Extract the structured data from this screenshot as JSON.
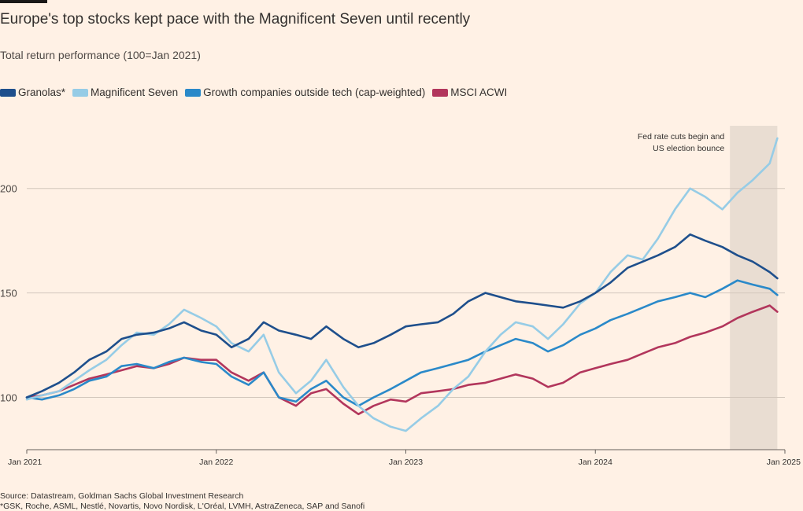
{
  "title": "Europe's top stocks kept pace with the Magnificent Seven until recently",
  "subtitle": "Total return performance (100=Jan 2021)",
  "source": "Source: Datastream, Goldman Sachs Global Investment Research",
  "footnote": "*GSK, Roche, ASML, Nestlé, Novartis, Novo Nordisk, L'Oréal, LVMH, AstraZeneca, SAP and Sanofi",
  "chart_data": {
    "type": "line",
    "xlim": [
      2021.0,
      2025.0
    ],
    "ylim": [
      75,
      230
    ],
    "yticks": [
      100,
      150,
      200
    ],
    "ytick_labels": [
      "100",
      "150",
      "200"
    ],
    "xticks": [
      2021,
      2022,
      2023,
      2024,
      2025
    ],
    "xtick_labels": [
      "Jan 2021",
      "Jan 2022",
      "Jan 2023",
      "Jan 2024",
      "Jan 2025"
    ],
    "grid": true,
    "legend_position": "top-left",
    "shaded_region": {
      "x": [
        2024.71,
        2024.96
      ],
      "label_lines": [
        "Fed rate cuts begin and",
        "US election bounce"
      ]
    },
    "series": [
      {
        "name": "Granolas*",
        "color": "#1E4F8C",
        "x": [
          2021.0,
          2021.08,
          2021.17,
          2021.25,
          2021.33,
          2021.42,
          2021.5,
          2021.58,
          2021.67,
          2021.75,
          2021.83,
          2021.92,
          2022.0,
          2022.08,
          2022.17,
          2022.25,
          2022.33,
          2022.42,
          2022.5,
          2022.58,
          2022.67,
          2022.75,
          2022.83,
          2022.92,
          2023.0,
          2023.08,
          2023.17,
          2023.25,
          2023.33,
          2023.42,
          2023.5,
          2023.58,
          2023.67,
          2023.75,
          2023.83,
          2023.92,
          2024.0,
          2024.08,
          2024.17,
          2024.25,
          2024.33,
          2024.42,
          2024.5,
          2024.58,
          2024.67,
          2024.75,
          2024.83,
          2024.92,
          2024.96
        ],
        "values": [
          100,
          103,
          107,
          112,
          118,
          122,
          128,
          130,
          131,
          133,
          136,
          132,
          130,
          124,
          128,
          136,
          132,
          130,
          128,
          134,
          128,
          124,
          126,
          130,
          134,
          135,
          136,
          140,
          146,
          150,
          148,
          146,
          145,
          144,
          143,
          146,
          150,
          155,
          162,
          165,
          168,
          172,
          178,
          175,
          172,
          168,
          165,
          160,
          157
        ]
      },
      {
        "name": "Magnificent Seven",
        "color": "#96CCE6",
        "x": [
          2021.0,
          2021.08,
          2021.17,
          2021.25,
          2021.33,
          2021.42,
          2021.5,
          2021.58,
          2021.67,
          2021.75,
          2021.83,
          2021.92,
          2022.0,
          2022.08,
          2022.17,
          2022.25,
          2022.33,
          2022.42,
          2022.5,
          2022.58,
          2022.67,
          2022.75,
          2022.83,
          2022.92,
          2023.0,
          2023.08,
          2023.17,
          2023.25,
          2023.33,
          2023.42,
          2023.5,
          2023.58,
          2023.67,
          2023.75,
          2023.83,
          2023.92,
          2024.0,
          2024.08,
          2024.17,
          2024.25,
          2024.33,
          2024.42,
          2024.5,
          2024.58,
          2024.67,
          2024.75,
          2024.83,
          2024.92,
          2024.96
        ],
        "values": [
          99,
          101,
          103,
          108,
          113,
          118,
          125,
          131,
          130,
          135,
          142,
          138,
          134,
          126,
          122,
          130,
          112,
          102,
          108,
          118,
          105,
          96,
          90,
          86,
          84,
          90,
          96,
          104,
          110,
          122,
          130,
          136,
          134,
          128,
          135,
          145,
          150,
          160,
          168,
          166,
          176,
          190,
          200,
          196,
          190,
          198,
          204,
          212,
          224
        ]
      },
      {
        "name": "Growth companies outside tech (cap-weighted)",
        "color": "#2A89C9",
        "x": [
          2021.0,
          2021.08,
          2021.17,
          2021.25,
          2021.33,
          2021.42,
          2021.5,
          2021.58,
          2021.67,
          2021.75,
          2021.83,
          2021.92,
          2022.0,
          2022.08,
          2022.17,
          2022.25,
          2022.33,
          2022.42,
          2022.5,
          2022.58,
          2022.67,
          2022.75,
          2022.83,
          2022.92,
          2023.0,
          2023.08,
          2023.17,
          2023.25,
          2023.33,
          2023.42,
          2023.5,
          2023.58,
          2023.67,
          2023.75,
          2023.83,
          2023.92,
          2024.0,
          2024.08,
          2024.17,
          2024.25,
          2024.33,
          2024.42,
          2024.5,
          2024.58,
          2024.67,
          2024.75,
          2024.83,
          2024.92,
          2024.96
        ],
        "values": [
          100,
          99,
          101,
          104,
          108,
          110,
          115,
          116,
          114,
          117,
          119,
          117,
          116,
          110,
          106,
          112,
          100,
          98,
          104,
          108,
          100,
          96,
          100,
          104,
          108,
          112,
          114,
          116,
          118,
          122,
          125,
          128,
          126,
          122,
          125,
          130,
          133,
          137,
          140,
          143,
          146,
          148,
          150,
          148,
          152,
          156,
          154,
          152,
          149
        ]
      },
      {
        "name": "MSCI ACWI",
        "color": "#B2365C",
        "x": [
          2021.0,
          2021.08,
          2021.17,
          2021.25,
          2021.33,
          2021.42,
          2021.5,
          2021.58,
          2021.67,
          2021.75,
          2021.83,
          2021.92,
          2022.0,
          2022.08,
          2022.17,
          2022.25,
          2022.33,
          2022.42,
          2022.5,
          2022.58,
          2022.67,
          2022.75,
          2022.83,
          2022.92,
          2023.0,
          2023.08,
          2023.17,
          2023.25,
          2023.33,
          2023.42,
          2023.5,
          2023.58,
          2023.67,
          2023.75,
          2023.83,
          2023.92,
          2024.0,
          2024.08,
          2024.17,
          2024.25,
          2024.33,
          2024.42,
          2024.5,
          2024.58,
          2024.67,
          2024.75,
          2024.83,
          2024.92,
          2024.96
        ],
        "values": [
          100,
          101,
          103,
          106,
          109,
          111,
          113,
          115,
          114,
          116,
          119,
          118,
          118,
          112,
          108,
          112,
          100,
          96,
          102,
          104,
          97,
          92,
          96,
          99,
          98,
          102,
          103,
          104,
          106,
          107,
          109,
          111,
          109,
          105,
          107,
          112,
          114,
          116,
          118,
          121,
          124,
          126,
          129,
          131,
          134,
          138,
          141,
          144,
          141
        ]
      }
    ]
  }
}
